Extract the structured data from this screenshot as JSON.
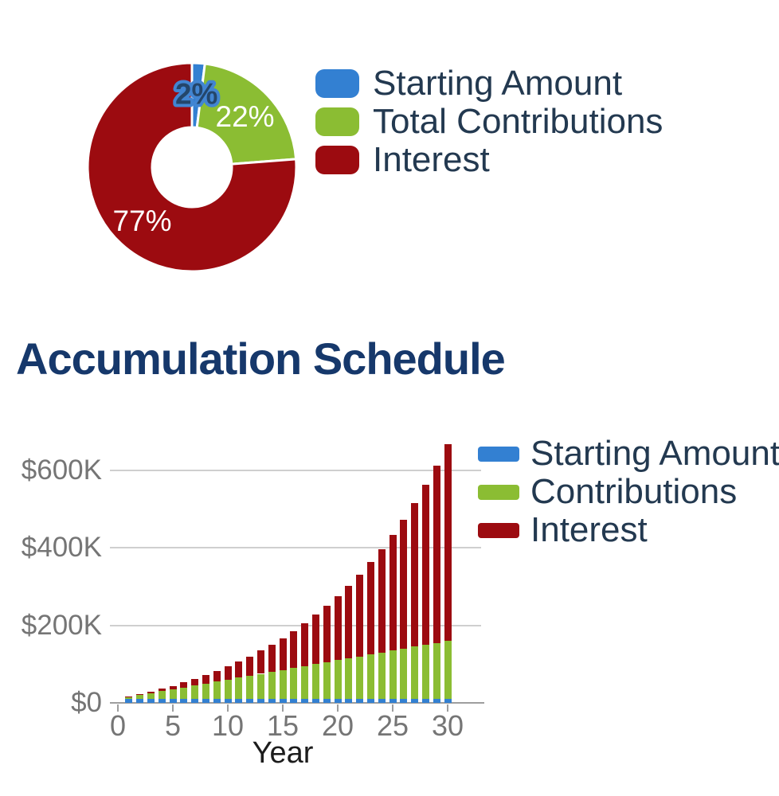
{
  "chart_data": [
    {
      "type": "pie",
      "donut": true,
      "labels": [
        "Starting Amount",
        "Total Contributions",
        "Interest"
      ],
      "values_pct": [
        2,
        22,
        77
      ],
      "slice_labels": [
        "2%",
        "22%",
        "77%"
      ],
      "colors": [
        "#3380d2",
        "#8bbd33",
        "#9c0b10"
      ],
      "slice_label_colors": [
        "#24466b",
        "#ffffff",
        "#ffffff"
      ],
      "slice_label_outline": "#4285d2",
      "legend_position": "right"
    },
    {
      "type": "bar",
      "stacked": true,
      "title": "Accumulation Schedule",
      "title_color": "#16386b",
      "xlabel": "Year",
      "categories": [
        1,
        2,
        3,
        4,
        5,
        6,
        7,
        8,
        9,
        10,
        11,
        12,
        13,
        14,
        15,
        16,
        17,
        18,
        19,
        20,
        21,
        22,
        23,
        24,
        25,
        26,
        27,
        28,
        29,
        30
      ],
      "unit": "USD thousands (estimated from gridlines)",
      "series": [
        {
          "name": "Starting Amount",
          "key": "starting-amount",
          "color": "#3380d2",
          "values_k": [
            10,
            10,
            10,
            10,
            10,
            10,
            10,
            10,
            10,
            10,
            10,
            10,
            10,
            10,
            10,
            10,
            10,
            10,
            10,
            10,
            10,
            10,
            10,
            10,
            10,
            10,
            10,
            10,
            10,
            10
          ]
        },
        {
          "name": "Contributions",
          "key": "contributions",
          "color": "#8bbd33",
          "values_k": [
            5,
            10,
            15,
            20,
            25,
            30,
            35,
            40,
            45,
            50,
            55,
            60,
            65,
            70,
            75,
            80,
            85,
            90,
            95,
            100,
            105,
            110,
            115,
            120,
            125,
            130,
            135,
            140,
            145,
            150
          ]
        },
        {
          "name": "Interest",
          "key": "interest",
          "color": "#9c0b10",
          "values_k": [
            0.8,
            2.1,
            3.8,
            6.1,
            9,
            12.6,
            16.8,
            21.7,
            27.4,
            34,
            41.5,
            50.1,
            59.7,
            70.5,
            82.5,
            95.9,
            110.8,
            127.2,
            145.4,
            165.4,
            187.5,
            211.7,
            238.2,
            267.2,
            299,
            333.7,
            371.6,
            413,
            458,
            507.1
          ]
        }
      ],
      "y_ticks": [
        {
          "label": "$0",
          "value_k": 0
        },
        {
          "label": "$200K",
          "value_k": 200
        },
        {
          "label": "$400K",
          "value_k": 400
        },
        {
          "label": "$600K",
          "value_k": 600
        }
      ],
      "x_ticks": [
        {
          "label": "0",
          "year": 0
        },
        {
          "label": "5",
          "year": 5
        },
        {
          "label": "10",
          "year": 10
        },
        {
          "label": "15",
          "year": 15
        },
        {
          "label": "20",
          "year": 20
        },
        {
          "label": "25",
          "year": 25
        },
        {
          "label": "30",
          "year": 30
        }
      ],
      "ylim_k": [
        0,
        680
      ],
      "grid": true,
      "legend_position": "right"
    }
  ]
}
